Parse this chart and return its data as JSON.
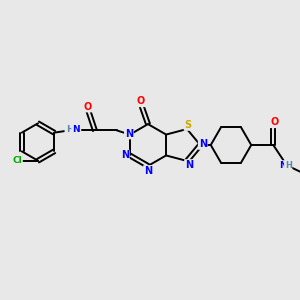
{
  "bg_color": "#e8e8e8",
  "bond_color": "#000000",
  "bond_width": 1.4,
  "atom_colors": {
    "N": "#0000ff",
    "O": "#ff0000",
    "S": "#ccaa00",
    "Cl": "#00aa00",
    "H": "#5588aa",
    "C": "#000000"
  },
  "figsize": [
    3.0,
    3.0
  ],
  "dpi": 100,
  "scale": 1.0
}
